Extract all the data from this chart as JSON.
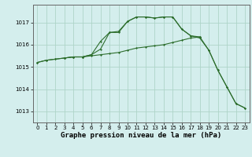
{
  "bg_color": "#d4eeed",
  "grid_color": "#aed4c8",
  "line_color": "#2d6e2d",
  "xlabel": "Graphe pression niveau de la mer (hPa)",
  "xlabel_fontsize": 6.5,
  "tick_fontsize": 5.0,
  "ylabel_ticks": [
    1013,
    1014,
    1015,
    1016,
    1017
  ],
  "xlim": [
    -0.5,
    23.5
  ],
  "ylim": [
    1012.5,
    1017.8
  ],
  "line1_x": [
    0,
    1,
    2,
    3,
    4,
    5,
    6,
    7,
    8,
    9,
    10,
    11,
    12,
    13,
    14,
    15,
    16,
    17,
    18,
    19,
    20,
    21,
    22,
    23
  ],
  "line1_y": [
    1015.2,
    1015.3,
    1015.35,
    1015.4,
    1015.45,
    1015.45,
    1015.55,
    1016.15,
    1016.55,
    1016.6,
    1017.05,
    1017.25,
    1017.25,
    1017.2,
    1017.25,
    1017.25,
    1016.7,
    1016.4,
    1016.3,
    1015.75,
    1014.85,
    1014.1,
    1013.35,
    1013.15
  ],
  "line2_x": [
    0,
    1,
    2,
    3,
    4,
    5,
    6,
    7,
    8,
    9,
    10,
    11,
    12,
    13,
    14,
    15,
    16,
    17,
    18,
    19,
    20,
    21,
    22,
    23
  ],
  "line2_y": [
    1015.2,
    1015.3,
    1015.35,
    1015.4,
    1015.45,
    1015.45,
    1015.5,
    1015.55,
    1015.6,
    1015.65,
    1015.75,
    1015.85,
    1015.9,
    1015.95,
    1016.0,
    1016.1,
    1016.2,
    1016.3,
    1016.35,
    1015.75,
    1014.85,
    1014.1,
    1013.35,
    1013.15
  ],
  "line3_x": [
    3,
    4,
    5,
    6,
    7,
    8,
    9,
    10,
    11,
    12,
    13,
    14,
    15,
    16,
    17,
    18
  ],
  "line3_y": [
    1015.4,
    1015.45,
    1015.45,
    1015.55,
    1015.8,
    1016.55,
    1016.55,
    1017.05,
    1017.25,
    1017.25,
    1017.2,
    1017.25,
    1017.25,
    1016.7,
    1016.4,
    1016.35
  ]
}
